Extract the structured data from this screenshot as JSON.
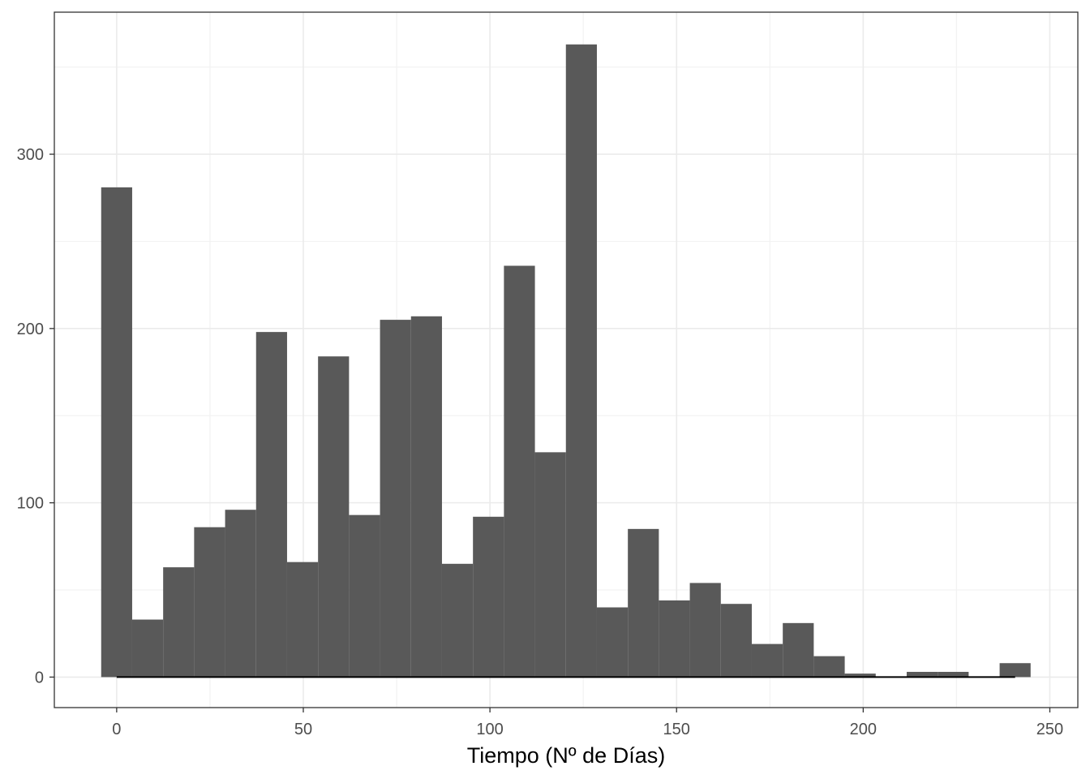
{
  "chart_data": {
    "type": "bar",
    "xlabel": "Tiempo (Nº de Días)",
    "ylabel": "",
    "title": "",
    "bin_width": 8.3,
    "bins": [
      {
        "x": 0.0,
        "count": 281
      },
      {
        "x": 8.3,
        "count": 33
      },
      {
        "x": 16.6,
        "count": 63
      },
      {
        "x": 24.9,
        "count": 86
      },
      {
        "x": 33.2,
        "count": 96
      },
      {
        "x": 41.5,
        "count": 198
      },
      {
        "x": 49.8,
        "count": 66
      },
      {
        "x": 58.1,
        "count": 184
      },
      {
        "x": 66.4,
        "count": 93
      },
      {
        "x": 74.7,
        "count": 205
      },
      {
        "x": 83.0,
        "count": 207
      },
      {
        "x": 91.3,
        "count": 65
      },
      {
        "x": 99.6,
        "count": 92
      },
      {
        "x": 107.9,
        "count": 236
      },
      {
        "x": 116.2,
        "count": 129
      },
      {
        "x": 124.5,
        "count": 363
      },
      {
        "x": 132.8,
        "count": 40
      },
      {
        "x": 141.1,
        "count": 85
      },
      {
        "x": 149.4,
        "count": 44
      },
      {
        "x": 157.7,
        "count": 54
      },
      {
        "x": 166.0,
        "count": 42
      },
      {
        "x": 174.3,
        "count": 19
      },
      {
        "x": 182.6,
        "count": 31
      },
      {
        "x": 190.9,
        "count": 12
      },
      {
        "x": 199.2,
        "count": 2
      },
      {
        "x": 207.5,
        "count": 0
      },
      {
        "x": 215.8,
        "count": 3
      },
      {
        "x": 224.1,
        "count": 3
      },
      {
        "x": 232.4,
        "count": 0
      },
      {
        "x": 240.7,
        "count": 8
      }
    ],
    "xlim": [
      -16.7,
      257.5
    ],
    "ylim": [
      -17.5,
      381.5
    ],
    "x_ticks": [
      0,
      50,
      100,
      150,
      200,
      250
    ],
    "x_tick_labels": [
      "0",
      "50",
      "100",
      "150",
      "200",
      "250"
    ],
    "y_ticks": [
      0,
      100,
      200,
      300
    ],
    "y_tick_labels": [
      "0",
      "100",
      "200",
      "300"
    ],
    "grid": true,
    "theme": "bw",
    "bar_color": "#595959",
    "baseline_color": "#000000"
  }
}
